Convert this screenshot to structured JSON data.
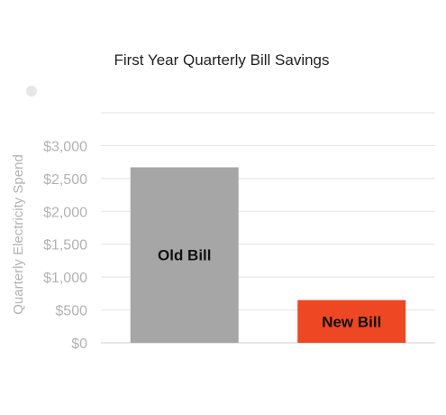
{
  "chart_data": {
    "type": "bar",
    "title": "First Year Quarterly Bill Savings",
    "xlabel": "",
    "ylabel": "Quarterly Electricity Spend",
    "categories": [
      "Old Bill",
      "New Bill"
    ],
    "values": [
      2670,
      650
    ],
    "bar_colors": [
      "#a6a6a6",
      "#ee4723"
    ],
    "ylim": [
      0,
      3500
    ],
    "y_ticks": [
      {
        "value": 0,
        "label": "$0"
      },
      {
        "value": 500,
        "label": "$500"
      },
      {
        "value": 1000,
        "label": "$1,000"
      },
      {
        "value": 1500,
        "label": "$1,500"
      },
      {
        "value": 2000,
        "label": "$2,000"
      },
      {
        "value": 2500,
        "label": "$2,500"
      },
      {
        "value": 3000,
        "label": "$3,000"
      }
    ],
    "grid": true,
    "legend": "none"
  }
}
